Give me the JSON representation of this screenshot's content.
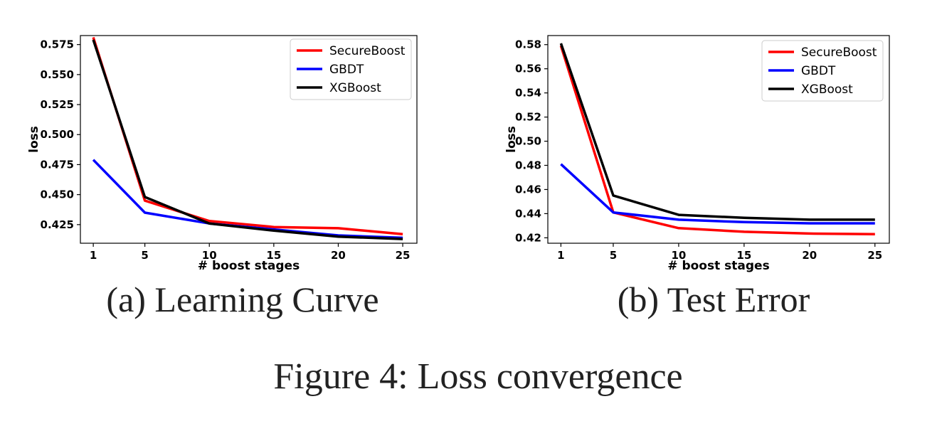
{
  "figure_caption": "Figure 4: Loss convergence",
  "subcaptions": [
    "(a) Learning Curve",
    "(b) Test Error"
  ],
  "chart_data": [
    {
      "type": "line",
      "title": "",
      "subcaption": "(a) Learning Curve",
      "xlabel": "# boost stages",
      "ylabel": "loss",
      "x": [
        1,
        5,
        10,
        15,
        20,
        25
      ],
      "x_ticks": [
        "1",
        "5",
        "10",
        "15",
        "20",
        "25"
      ],
      "y_ticks": [
        "0.425",
        "0.450",
        "0.475",
        "0.500",
        "0.525",
        "0.550",
        "0.575"
      ],
      "ylim": [
        0.4095,
        0.5825
      ],
      "grid": false,
      "legend": "top-right",
      "series": [
        {
          "name": "SecureBoost",
          "color": "#ff0000",
          "values": [
            0.581,
            0.445,
            0.428,
            0.423,
            0.422,
            0.417
          ]
        },
        {
          "name": "GBDT",
          "color": "#0000ff",
          "values": [
            0.479,
            0.435,
            0.426,
            0.421,
            0.416,
            0.414
          ]
        },
        {
          "name": "XGBoost",
          "color": "#000000",
          "values": [
            0.579,
            0.448,
            0.426,
            0.42,
            0.415,
            0.413
          ]
        }
      ]
    },
    {
      "type": "line",
      "title": "",
      "subcaption": "(b) Test Error",
      "xlabel": "# boost stages",
      "ylabel": "loss",
      "x": [
        1,
        5,
        10,
        15,
        20,
        25
      ],
      "x_ticks": [
        "1",
        "5",
        "10",
        "15",
        "20",
        "25"
      ],
      "y_ticks": [
        "0.42",
        "0.44",
        "0.46",
        "0.48",
        "0.50",
        "0.52",
        "0.54",
        "0.56",
        "0.58"
      ],
      "ylim": [
        0.4155,
        0.5875
      ],
      "grid": false,
      "legend": "top-right",
      "series": [
        {
          "name": "SecureBoost",
          "color": "#ff0000",
          "values": [
            0.579,
            0.441,
            0.428,
            0.425,
            0.4235,
            0.423
          ]
        },
        {
          "name": "GBDT",
          "color": "#0000ff",
          "values": [
            0.481,
            0.441,
            0.435,
            0.433,
            0.432,
            0.432
          ]
        },
        {
          "name": "XGBoost",
          "color": "#000000",
          "values": [
            0.581,
            0.455,
            0.439,
            0.4365,
            0.435,
            0.435
          ]
        }
      ]
    }
  ]
}
